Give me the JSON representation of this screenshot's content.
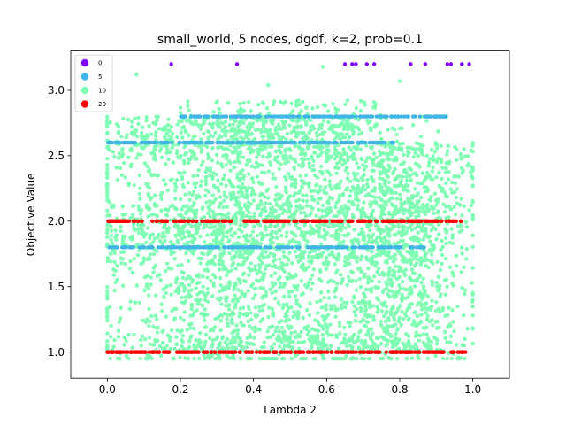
{
  "chart_data": {
    "type": "scatter",
    "title": "small_world, 5 nodes, dgdf, k=2, prob=0.1",
    "xlabel": "Lambda 2",
    "ylabel": "Objective Value",
    "xlim": [
      -0.1,
      1.1
    ],
    "ylim": [
      0.8,
      3.3
    ],
    "x_ticks": [
      "0.0",
      "0.2",
      "0.4",
      "0.6",
      "0.8",
      "1.0"
    ],
    "x_tick_values": [
      0.0,
      0.2,
      0.4,
      0.6,
      0.8,
      1.0
    ],
    "y_ticks": [
      "1.0",
      "1.5",
      "2.0",
      "2.5",
      "3.0"
    ],
    "y_tick_values": [
      1.0,
      1.5,
      2.0,
      2.5,
      3.0
    ],
    "grid": false,
    "legend_position": "top-left",
    "series": [
      {
        "name": "10",
        "color": "#80ffb4",
        "bands": [
          {
            "y": 2.6,
            "x_range": [
              0.0,
              0.7
            ]
          },
          {
            "y": 2.8,
            "x_range": [
              0.2,
              0.75
            ]
          },
          {
            "y": 2.0,
            "x_range": [
              0.0,
              0.9
            ]
          },
          {
            "y": 1.8,
            "x_range": [
              0.0,
              0.88
            ]
          },
          {
            "y": 1.0,
            "x_range": [
              0.0,
              0.98
            ]
          }
        ],
        "scatter_regions": [
          {
            "y_range": [
              1.0,
              2.0
            ],
            "x_center": 0.38,
            "x_spread": 0.2
          },
          {
            "y_range": [
              2.0,
              2.8
            ],
            "x_center": 0.42,
            "x_spread": 0.22
          },
          {
            "y_range": [
              1.0,
              2.6
            ],
            "x_center": 0.8,
            "x_spread": 0.1
          }
        ],
        "points": [
          [
            0.08,
            3.12
          ],
          [
            0.44,
            3.04
          ],
          [
            0.59,
            3.18
          ],
          [
            0.8,
            3.07
          ]
        ]
      },
      {
        "name": "5",
        "color": "#41b6e6",
        "bands": [
          {
            "y": 2.6,
            "x_range": [
              0.0,
              0.79
            ]
          },
          {
            "y": 2.8,
            "x_range": [
              0.2,
              0.93
            ]
          },
          {
            "y": 1.8,
            "x_range": [
              0.0,
              0.87
            ]
          }
        ]
      },
      {
        "name": "20",
        "color": "#ff0000",
        "bands": [
          {
            "y": 2.0,
            "x_range": [
              0.0,
              0.98
            ]
          },
          {
            "y": 1.0,
            "x_range": [
              0.0,
              0.98
            ]
          }
        ]
      },
      {
        "name": "0",
        "color": "#8000ff",
        "points": [
          [
            0.175,
            3.2
          ],
          [
            0.355,
            3.2
          ],
          [
            0.65,
            3.2
          ],
          [
            0.67,
            3.2
          ],
          [
            0.68,
            3.2
          ],
          [
            0.71,
            3.2
          ],
          [
            0.73,
            3.2
          ],
          [
            0.83,
            3.2
          ],
          [
            0.87,
            3.2
          ],
          [
            0.93,
            3.2
          ],
          [
            0.94,
            3.2
          ],
          [
            0.97,
            3.2
          ],
          [
            0.99,
            3.2
          ]
        ]
      }
    ],
    "legend_order": [
      "0",
      "5",
      "10",
      "20"
    ]
  }
}
